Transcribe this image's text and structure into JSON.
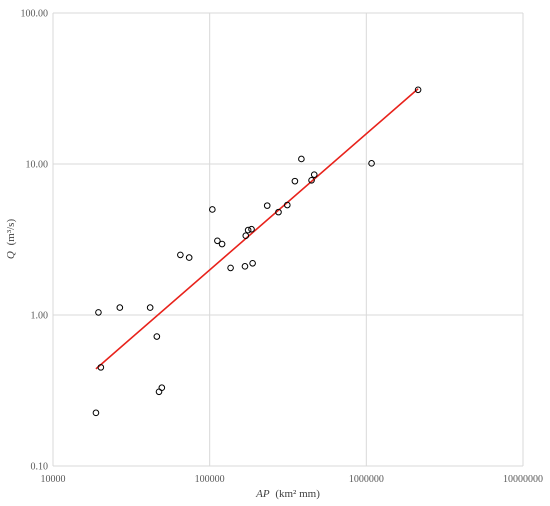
{
  "chart_data": {
    "type": "scatter",
    "xlabel_var": "AP",
    "xlabel_unit": "(km² mm)",
    "ylabel_var": "Q",
    "ylabel_unit": "(m³/s)",
    "x_scale": "log",
    "y_scale": "log",
    "xlim": [
      10000,
      10000000
    ],
    "ylim": [
      0.1,
      100
    ],
    "grid": true,
    "x_ticks": [
      10000,
      100000,
      1000000,
      10000000
    ],
    "x_tick_labels": [
      "10000",
      "100000",
      "1000000",
      "10000000"
    ],
    "y_ticks": [
      0.1,
      1,
      10,
      100
    ],
    "y_tick_labels": [
      "0.10",
      "1.00",
      "10.00",
      "100.00"
    ],
    "series": [
      {
        "points": [
          {
            "x": 18800,
            "y": 0.225
          },
          {
            "x": 19500,
            "y": 1.04
          },
          {
            "x": 20200,
            "y": 0.45
          },
          {
            "x": 26700,
            "y": 1.12
          },
          {
            "x": 41700,
            "y": 1.12
          },
          {
            "x": 46000,
            "y": 0.72
          },
          {
            "x": 47500,
            "y": 0.31
          },
          {
            "x": 49500,
            "y": 0.33
          },
          {
            "x": 65000,
            "y": 2.5
          },
          {
            "x": 74000,
            "y": 2.4
          },
          {
            "x": 104000,
            "y": 5.0
          },
          {
            "x": 112000,
            "y": 3.1
          },
          {
            "x": 120000,
            "y": 2.95
          },
          {
            "x": 136000,
            "y": 2.05
          },
          {
            "x": 168000,
            "y": 2.1
          },
          {
            "x": 170000,
            "y": 3.35
          },
          {
            "x": 176000,
            "y": 3.65
          },
          {
            "x": 185000,
            "y": 3.7
          },
          {
            "x": 188000,
            "y": 2.2
          },
          {
            "x": 233000,
            "y": 5.3
          },
          {
            "x": 275000,
            "y": 4.8
          },
          {
            "x": 313000,
            "y": 5.35
          },
          {
            "x": 350000,
            "y": 7.7
          },
          {
            "x": 385000,
            "y": 10.8
          },
          {
            "x": 447000,
            "y": 7.8
          },
          {
            "x": 465000,
            "y": 8.5
          },
          {
            "x": 1080000,
            "y": 10.1
          },
          {
            "x": 2140000,
            "y": 31.0
          }
        ]
      }
    ],
    "trendline": {
      "x": [
        18800,
        2140000
      ],
      "y": [
        0.44,
        31.5
      ]
    },
    "colors": {
      "markers": "#000000",
      "trendline": "#e8221b",
      "grid": "#d9d9d9"
    }
  }
}
